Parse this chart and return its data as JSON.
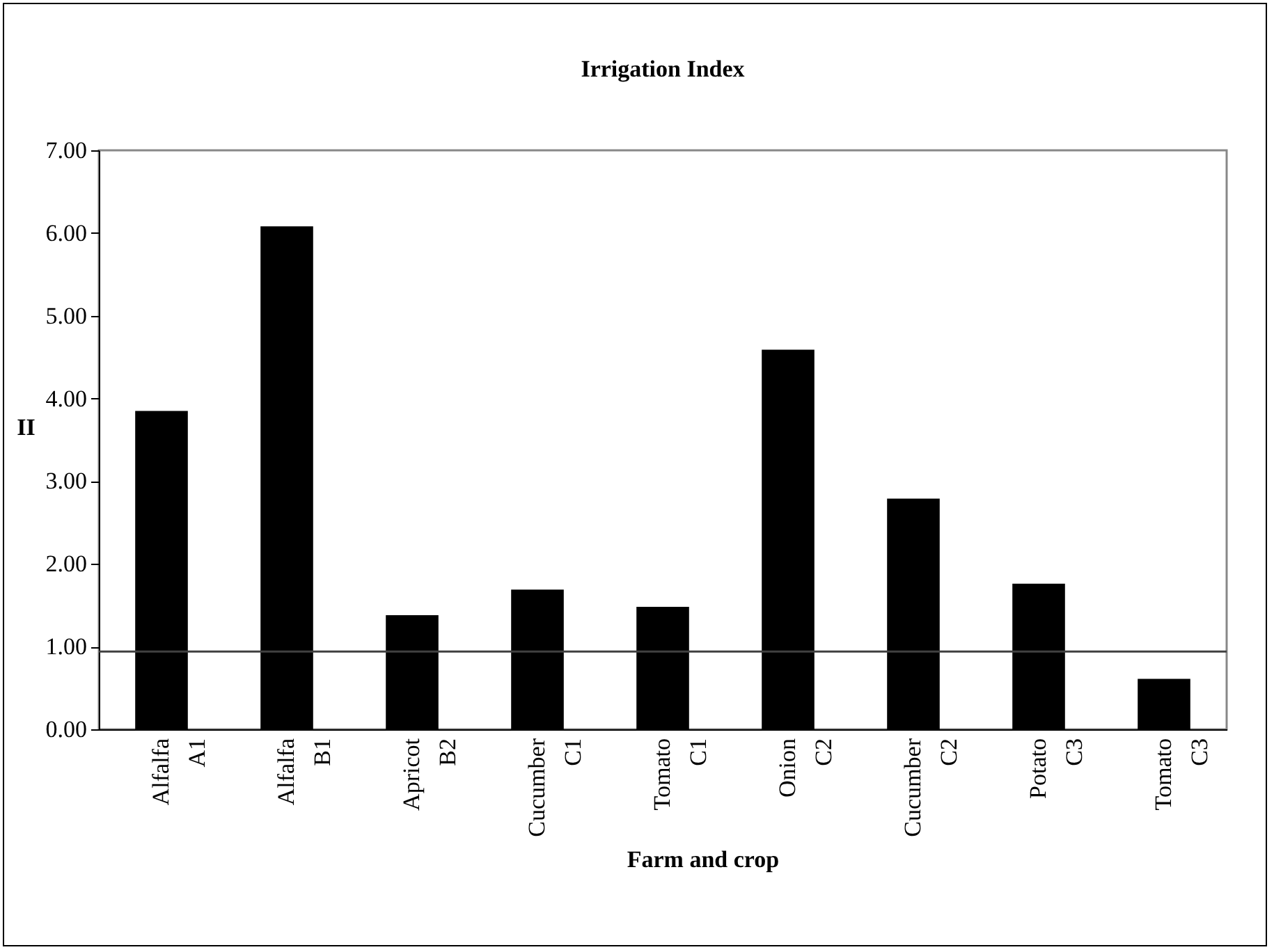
{
  "chart_data": {
    "type": "bar",
    "title": "Irrigation Index",
    "xlabel": "Farm and crop",
    "ylabel": "II",
    "categories": [
      "Alfalfa A1",
      "Alfalfa B1",
      "Apricot B2",
      "Cucumber C1",
      "Tomato C1",
      "Onion C2",
      "Cucumber C2",
      "Potato C3",
      "Tomato C3"
    ],
    "values": [
      3.85,
      6.08,
      1.38,
      1.69,
      1.48,
      4.59,
      2.79,
      1.76,
      0.61
    ],
    "color": "#000000",
    "ylim": [
      0,
      7
    ],
    "yticks": [
      {
        "value": 0,
        "label": "0.00"
      },
      {
        "value": 1,
        "label": "1.00"
      },
      {
        "value": 2,
        "label": "2.00"
      },
      {
        "value": 3,
        "label": "3.00"
      },
      {
        "value": 4,
        "label": "4.00"
      },
      {
        "value": 5,
        "label": "5.00"
      },
      {
        "value": 6,
        "label": "6.00"
      },
      {
        "value": 7,
        "label": "7.00"
      }
    ],
    "ref_lines": [
      {
        "axis": "y",
        "value": 0.94,
        "color": "#404040"
      }
    ],
    "grid": false
  }
}
